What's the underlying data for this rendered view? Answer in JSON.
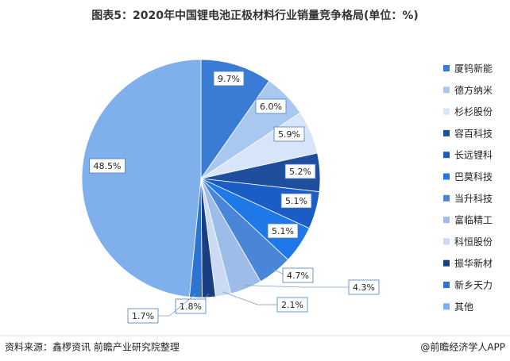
{
  "chart_data": {
    "type": "pie",
    "title": "图表5：2020年中国锂电池正极材料行业销量竞争格局(单位：%)",
    "categories": [
      "厦钨新能",
      "德方纳米",
      "杉杉股份",
      "容百科技",
      "长远锂科",
      "巴莫科技",
      "当升科技",
      "富临精工",
      "科恒股份",
      "振华新材",
      "新乡天力",
      "其他"
    ],
    "values": [
      9.7,
      6.0,
      5.9,
      5.2,
      5.1,
      5.1,
      4.7,
      4.3,
      2.1,
      1.8,
      1.7,
      48.5
    ],
    "value_labels": [
      "9.7%",
      "6.0%",
      "5.9%",
      "5.2%",
      "5.1%",
      "5.1%",
      "4.7%",
      "4.3%",
      "2.1%",
      "1.8%",
      "1.7%",
      "48.5%"
    ],
    "colors": [
      "#3a7bd5",
      "#a9c8f0",
      "#d6e5f8",
      "#1f4e9c",
      "#1a5dc4",
      "#1e78e8",
      "#4a86d8",
      "#9dbde8",
      "#c9daf2",
      "#1a3f80",
      "#2f73d0",
      "#7fb0ec"
    ],
    "legend": "right",
    "source": "资料来源：鑫椤资讯 前瞻产业研究院整理",
    "credit": "@前瞻经济学人APP"
  }
}
